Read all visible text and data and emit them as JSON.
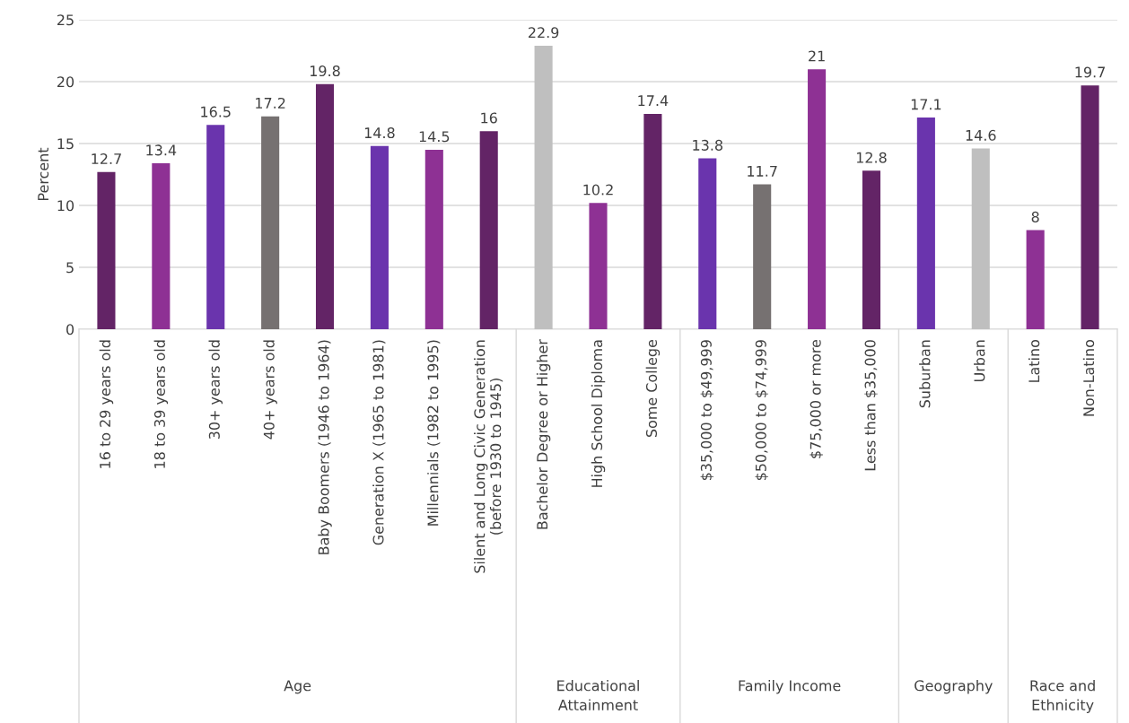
{
  "chart_data": {
    "type": "bar",
    "ylabel": "Percent",
    "categories": [
      "16 to 29 years old",
      "18 to 39 years old",
      "30+ years old",
      "40+ years old",
      "Baby Boomers (1946 to 1964)",
      "Generation X (1965 to 1981)",
      "Millennials (1982 to 1995)",
      "Silent and Long Civic Generation (before 1930 to 1945)",
      "Bachelor Degree or Higher",
      "High School Diploma",
      "Some College",
      "$35,000 to $49,999",
      "$50,000 to $74,999",
      "$75,000 or more",
      "Less than $35,000",
      "Suburban",
      "Urban",
      "Latino",
      "Non-Latino"
    ],
    "values": [
      12.7,
      13.4,
      16.5,
      17.2,
      19.8,
      14.8,
      14.5,
      16,
      22.9,
      10.2,
      17.4,
      13.8,
      11.7,
      21,
      12.8,
      17.1,
      14.6,
      8,
      19.7
    ],
    "colors": [
      "#632466",
      "#8e3194",
      "#6a34ad",
      "#767171",
      "#632466",
      "#6a34ad",
      "#8e3194",
      "#632466",
      "#bfbfbf",
      "#8e3194",
      "#632466",
      "#6a34ad",
      "#767171",
      "#8e3194",
      "#632466",
      "#6a34ad",
      "#bfbfbf",
      "#8e3194",
      "#632466"
    ],
    "ylim": [
      0,
      25
    ],
    "yticks": [
      0,
      5,
      10,
      15,
      20,
      25
    ],
    "grid": "y",
    "data_labels": true,
    "annotations": [
      "Age",
      "Educational Attainment",
      "Family Income",
      "Geography",
      "Race and Ethnicity"
    ]
  }
}
